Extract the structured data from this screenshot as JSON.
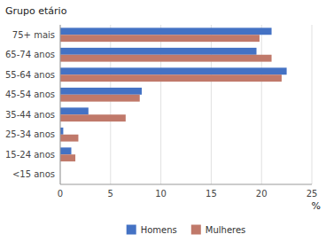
{
  "chart_data": {
    "type": "bar",
    "orientation": "horizontal",
    "categories": [
      "<15 anos",
      "15-24 anos",
      "25-34 anos",
      "35-44 anos",
      "45-54 anos",
      "55-64 anos",
      "65-74 anos",
      "75+ mais"
    ],
    "series": [
      {
        "name": "Homens",
        "color": "#4472C4",
        "values": [
          0,
          1.1,
          0.3,
          2.8,
          8.1,
          22.5,
          19.5,
          21.0
        ]
      },
      {
        "name": "Mulheres",
        "color": "#C0796A",
        "values": [
          0,
          1.5,
          1.8,
          6.5,
          7.9,
          22.0,
          21.0,
          19.8
        ]
      }
    ],
    "xlim": [
      0,
      25
    ],
    "xticks": [
      0,
      5,
      10,
      15,
      20,
      25
    ],
    "xlabel": "%",
    "ylabel": "Grupo etário",
    "grid": true,
    "legend": "bottom"
  }
}
